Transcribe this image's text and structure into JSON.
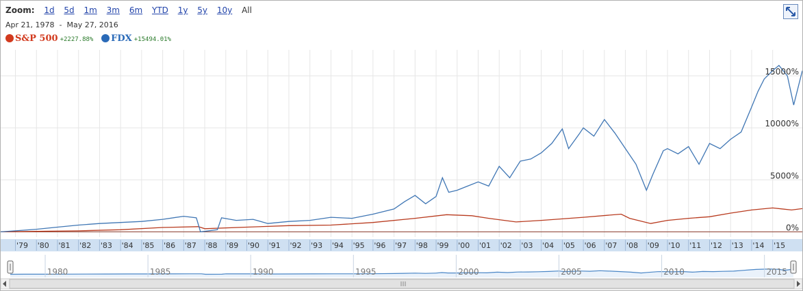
{
  "zoom": {
    "label": "Zoom:",
    "options": [
      "1d",
      "5d",
      "1m",
      "3m",
      "6m",
      "YTD",
      "1y",
      "5y",
      "10y",
      "All"
    ],
    "active": "All"
  },
  "date_range": {
    "start": "Apr 21, 1978",
    "separator": "-",
    "end": "May 27, 2016"
  },
  "legend": [
    {
      "name": "S&P 500",
      "change": "+2227.88%",
      "color": "#d23a1e"
    },
    {
      "name": "FDX",
      "change": "+15494.01%",
      "color": "#2a6ab8"
    }
  ],
  "colors": {
    "sp500": "#b83a1e",
    "fdx": "#3f76b4",
    "grid": "#e6e6e6",
    "timeline_band": "#cfe0f2",
    "nav_fill": "#eaf2fb",
    "nav_line": "#4a86c6"
  },
  "chart_data": {
    "type": "line",
    "x_unit": "year",
    "xlim": [
      1978.3,
      2016.41
    ],
    "ylim": [
      -500,
      17500
    ],
    "y_ticks": [
      0,
      5000,
      10000,
      15000
    ],
    "y_tick_labels": [
      "0%",
      "5000%",
      "10000%",
      "15000%"
    ],
    "x_tick_labels": [
      "'79",
      "'80",
      "'81",
      "'82",
      "'83",
      "'84",
      "'85",
      "'86",
      "'87",
      "'88",
      "'89",
      "'90",
      "'91",
      "'92",
      "'93",
      "'94",
      "'95",
      "'96",
      "'97",
      "'98",
      "'99",
      "'00",
      "'01",
      "'02",
      "'03",
      "'04",
      "'05",
      "'06",
      "'07",
      "'08",
      "'09",
      "'10",
      "'11",
      "'12",
      "'13",
      "'14",
      "'15"
    ],
    "x_tick_years": [
      1979,
      1980,
      1981,
      1982,
      1983,
      1984,
      1985,
      1986,
      1987,
      1988,
      1989,
      1990,
      1991,
      1992,
      1993,
      1994,
      1995,
      1996,
      1997,
      1998,
      1999,
      2000,
      2001,
      2002,
      2003,
      2004,
      2005,
      2006,
      2007,
      2008,
      2009,
      2010,
      2011,
      2012,
      2013,
      2014,
      2015
    ],
    "grid": true,
    "series": [
      {
        "name": "S&P 500",
        "x": [
          1978.3,
          1980,
          1982,
          1984,
          1986,
          1987.7,
          1988,
          1990,
          1992,
          1994,
          1996,
          1998,
          1999.5,
          2000.7,
          2001.5,
          2002.8,
          2004,
          2006,
          2007.8,
          2008.2,
          2009.2,
          2010,
          2011,
          2012,
          2013,
          2014,
          2015,
          2015.9,
          2016.41
        ],
        "y": [
          0,
          50,
          100,
          200,
          420,
          500,
          300,
          450,
          600,
          650,
          900,
          1300,
          1650,
          1550,
          1300,
          950,
          1100,
          1400,
          1700,
          1300,
          800,
          1100,
          1300,
          1450,
          1800,
          2100,
          2300,
          2100,
          2230
        ]
      },
      {
        "name": "FDX",
        "x": [
          1978.3,
          1979,
          1980,
          1981,
          1982,
          1983,
          1984,
          1985,
          1986,
          1987,
          1987.6,
          1987.8,
          1988.6,
          1988.8,
          1989.5,
          1990.3,
          1991,
          1992,
          1993,
          1994,
          1995,
          1996,
          1997,
          1997.5,
          1998,
          1998.5,
          1999,
          1999.3,
          1999.6,
          2000,
          2000.5,
          2001,
          2001.5,
          2002,
          2002.5,
          2003,
          2003.5,
          2004,
          2004.5,
          2005,
          2005.3,
          2005.8,
          2006,
          2006.5,
          2007,
          2007.5,
          2008,
          2008.5,
          2009,
          2009.3,
          2009.8,
          2010,
          2010.5,
          2011,
          2011.5,
          2012,
          2012.5,
          2013,
          2013.5,
          2014,
          2014.3,
          2014.6,
          2015,
          2015.3,
          2015.7,
          2016,
          2016.41
        ],
        "y": [
          0,
          100,
          250,
          450,
          650,
          800,
          900,
          1000,
          1200,
          1500,
          1350,
          0,
          200,
          1350,
          1100,
          1200,
          800,
          1000,
          1100,
          1400,
          1300,
          1700,
          2200,
          2900,
          3500,
          2700,
          3400,
          5200,
          3800,
          4000,
          4400,
          4800,
          4400,
          6300,
          5200,
          6800,
          7000,
          7600,
          8500,
          9900,
          8000,
          9400,
          10000,
          9200,
          10800,
          9500,
          8000,
          6500,
          4000,
          5500,
          7800,
          8000,
          7500,
          8200,
          6500,
          8500,
          8000,
          8900,
          9600,
          12000,
          13500,
          14700,
          15500,
          16000,
          15000,
          12200,
          15494
        ]
      }
    ],
    "navigator": {
      "year_labels": [
        "1980",
        "1985",
        "1990",
        "1995",
        "2000",
        "2005",
        "2010",
        "2015"
      ],
      "years": [
        1980,
        1985,
        1990,
        1995,
        2000,
        2005,
        2010,
        2015
      ]
    }
  }
}
